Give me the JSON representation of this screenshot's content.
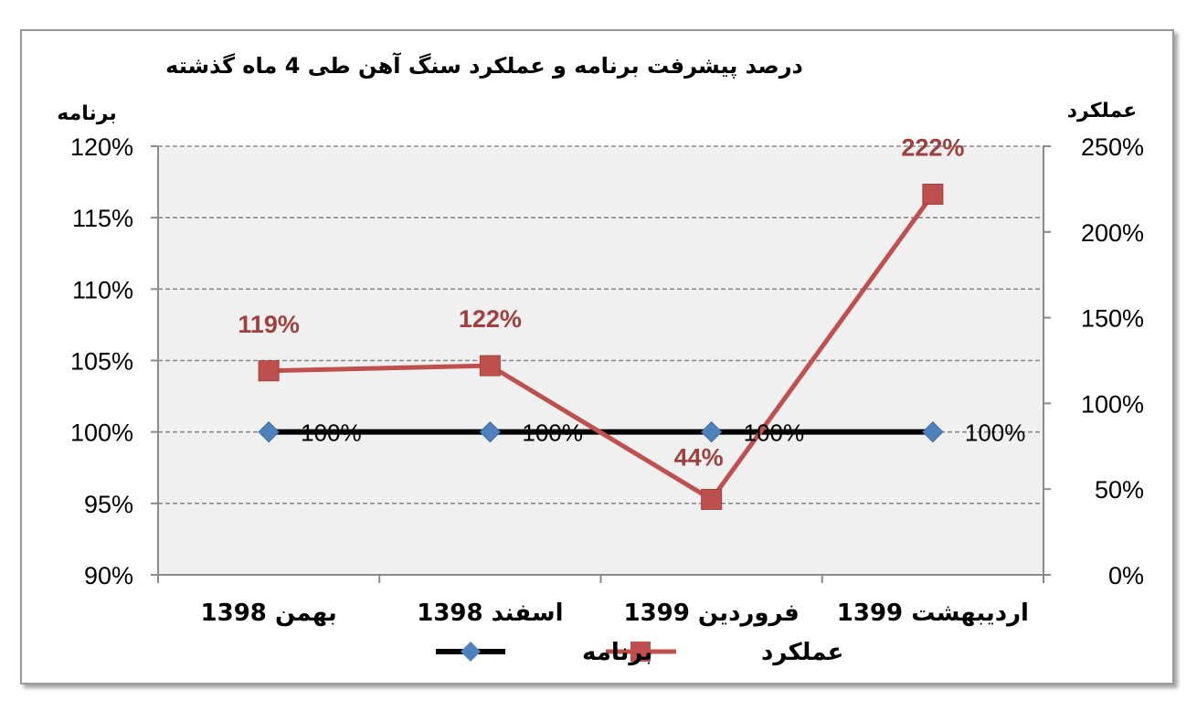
{
  "chart_data": {
    "type": "line",
    "title": "درصد پیشرفت برنامه و عملکرد سنگ آهن طی 4 ماه گذشته",
    "categories": [
      "بهمن 1398",
      "اسفند 1398",
      "فروردین 1399",
      "اردیبهشت 1399"
    ],
    "y_left": {
      "title": "برنامه",
      "range": [
        90,
        120
      ],
      "ticks": [
        "90%",
        "95%",
        "100%",
        "105%",
        "110%",
        "115%",
        "120%"
      ],
      "tick_values": [
        90,
        95,
        100,
        105,
        110,
        115,
        120
      ]
    },
    "y_right": {
      "title": "عملکرد",
      "range": [
        0,
        250
      ],
      "ticks": [
        "0%",
        "50%",
        "100%",
        "150%",
        "200%",
        "250%"
      ],
      "tick_values": [
        0,
        50,
        100,
        150,
        200,
        250
      ]
    },
    "series": [
      {
        "name": "برنامه",
        "axis": "left",
        "values": [
          100,
          100,
          100,
          100
        ],
        "labels": [
          "100%",
          "100%",
          "100%",
          "100%"
        ],
        "color": "#000000",
        "marker_color": "#4f81bd",
        "marker": "diamond"
      },
      {
        "name": "عملکرد",
        "axis": "right",
        "values": [
          119,
          122,
          44,
          222
        ],
        "labels": [
          "119%",
          "122%",
          "44%",
          "222%"
        ],
        "color": "#c0504d",
        "label_color": "#a0403d",
        "marker": "square"
      }
    ],
    "grid": true,
    "legend_position": "bottom",
    "plot_background": "#f0f0f0"
  }
}
